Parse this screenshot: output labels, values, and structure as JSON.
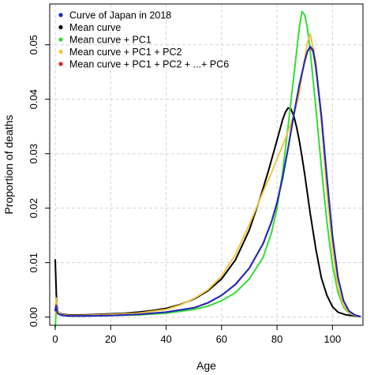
{
  "chart_data": {
    "type": "line",
    "title": "",
    "xlabel": "Age",
    "ylabel": "Proportion of deaths",
    "xlim": [
      -2,
      111
    ],
    "ylim": [
      -0.0015,
      0.0575
    ],
    "xticks": [
      0,
      20,
      40,
      60,
      80,
      100
    ],
    "xtick_labels": [
      "0",
      "20",
      "40",
      "60",
      "80",
      "100"
    ],
    "yticks": [
      0,
      0.01,
      0.02,
      0.03,
      0.04,
      0.05
    ],
    "ytick_labels": [
      "0.00",
      "0.01",
      "0.02",
      "0.03",
      "0.04",
      "0.05"
    ],
    "grid": true,
    "legend_position": "top-left",
    "series": [
      {
        "name": "Mean curve",
        "color": "#000000",
        "x": [
          0,
          0.5,
          1,
          2,
          3,
          5,
          10,
          15,
          20,
          25,
          30,
          35,
          40,
          45,
          50,
          55,
          60,
          65,
          70,
          74,
          77,
          80,
          82,
          83,
          84,
          85,
          86,
          87,
          88,
          89,
          90,
          92,
          94,
          96,
          98,
          100,
          102,
          105,
          108,
          110
        ],
        "y": [
          0.0105,
          0.0025,
          0.0009,
          0.0006,
          0.0005,
          0.0004,
          0.0004,
          0.0005,
          0.0006,
          0.0007,
          0.0009,
          0.0012,
          0.0016,
          0.0023,
          0.0033,
          0.0048,
          0.007,
          0.0105,
          0.016,
          0.022,
          0.027,
          0.0325,
          0.0362,
          0.0376,
          0.0384,
          0.0382,
          0.037,
          0.035,
          0.0325,
          0.0295,
          0.0262,
          0.019,
          0.0125,
          0.0072,
          0.004,
          0.0019,
          0.0009,
          0.0004,
          0.0002,
          0.0001
        ]
      },
      {
        "name": "Mean curve + PC1",
        "color": "#33dd33",
        "x": [
          0,
          0.3,
          0.6,
          1,
          2,
          3,
          5,
          10,
          20,
          30,
          40,
          50,
          55,
          60,
          65,
          70,
          75,
          78,
          80,
          82,
          84,
          86,
          88,
          89,
          90,
          91,
          92,
          94,
          96,
          98,
          100,
          102,
          104,
          106,
          108,
          110
        ],
        "y": [
          -0.0018,
          0.0008,
          0.0015,
          0.0008,
          0.0004,
          0.0003,
          0.0002,
          0.0002,
          0.0003,
          0.0004,
          0.0007,
          0.0014,
          0.002,
          0.003,
          0.0045,
          0.007,
          0.011,
          0.0155,
          0.02,
          0.0265,
          0.035,
          0.044,
          0.053,
          0.0561,
          0.0555,
          0.053,
          0.0488,
          0.0385,
          0.0275,
          0.0175,
          0.0095,
          0.0045,
          0.0018,
          0.0007,
          0.0003,
          0.0001
        ]
      },
      {
        "name": "Mean curve + PC1 + PC2",
        "color": "#f5c542",
        "x": [
          0,
          0.3,
          0.6,
          1,
          2,
          3,
          5,
          10,
          20,
          30,
          40,
          45,
          50,
          55,
          60,
          65,
          70,
          75,
          78,
          80,
          82,
          84,
          86,
          88,
          90,
          91,
          92,
          94,
          96,
          98,
          100,
          102,
          104,
          106,
          108,
          110
        ],
        "y": [
          0.0005,
          0.0035,
          0.0018,
          0.0009,
          0.0005,
          0.0004,
          0.0003,
          0.0003,
          0.0005,
          0.0007,
          0.0014,
          0.0022,
          0.0034,
          0.005,
          0.0075,
          0.0115,
          0.017,
          0.023,
          0.0265,
          0.029,
          0.0315,
          0.034,
          0.037,
          0.041,
          0.0475,
          0.0505,
          0.052,
          0.047,
          0.036,
          0.023,
          0.0125,
          0.0055,
          0.0022,
          0.0008,
          0.0003,
          0.0001
        ]
      },
      {
        "name": "Mean curve + PC1 + PC2 + ...+ PC6",
        "color": "#dd2222",
        "x": [
          0,
          0.3,
          0.6,
          1,
          2,
          3,
          5,
          10,
          20,
          30,
          40,
          50,
          55,
          60,
          65,
          70,
          75,
          78,
          80,
          82,
          84,
          86,
          88,
          90,
          91,
          92,
          93,
          94,
          96,
          98,
          100,
          102,
          104,
          106,
          108,
          110
        ],
        "y": [
          0.0012,
          0.0022,
          0.0012,
          0.0006,
          0.0004,
          0.0003,
          0.0002,
          0.0002,
          0.0003,
          0.0005,
          0.0009,
          0.0017,
          0.0026,
          0.004,
          0.006,
          0.009,
          0.0135,
          0.0175,
          0.021,
          0.0255,
          0.031,
          0.037,
          0.0425,
          0.047,
          0.0488,
          0.0495,
          0.0488,
          0.0458,
          0.0368,
          0.0255,
          0.0148,
          0.0072,
          0.003,
          0.0011,
          0.0004,
          0.0001
        ]
      },
      {
        "name": "Curve of Japan in 2018",
        "color": "#1a2bbf",
        "x": [
          0,
          0.3,
          0.6,
          1,
          2,
          3,
          5,
          10,
          20,
          30,
          40,
          50,
          55,
          60,
          65,
          70,
          75,
          78,
          80,
          82,
          84,
          86,
          88,
          90,
          91,
          92,
          93,
          94,
          96,
          98,
          100,
          102,
          104,
          106,
          108,
          110
        ],
        "y": [
          0.0012,
          0.0021,
          0.0012,
          0.0006,
          0.0004,
          0.0003,
          0.0002,
          0.0002,
          0.0003,
          0.0005,
          0.0009,
          0.0017,
          0.0026,
          0.004,
          0.006,
          0.009,
          0.0135,
          0.0175,
          0.021,
          0.0255,
          0.031,
          0.037,
          0.0425,
          0.047,
          0.0488,
          0.0497,
          0.049,
          0.046,
          0.037,
          0.0257,
          0.0149,
          0.0073,
          0.003,
          0.0011,
          0.0004,
          0.0001
        ]
      }
    ],
    "legend": [
      {
        "label": "Curve of Japan in 2018",
        "color": "#1a2bbf"
      },
      {
        "label": "Mean curve",
        "color": "#000000"
      },
      {
        "label": "Mean curve + PC1",
        "color": "#33dd33"
      },
      {
        "label": "Mean curve + PC1 + PC2",
        "color": "#f5c542"
      },
      {
        "label": "Mean curve + PC1 + PC2 + ...+ PC6",
        "color": "#dd2222"
      }
    ]
  }
}
